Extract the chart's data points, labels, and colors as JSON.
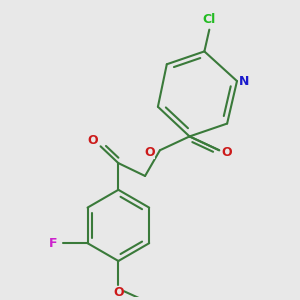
{
  "bg_color": "#e8e8e8",
  "bond_color": "#3a7a3a",
  "bond_width": 1.5,
  "cl_color": "#22bb22",
  "n_color": "#1a1acc",
  "o_color": "#cc1a1a",
  "f_color": "#cc22cc",
  "cl_label": "Cl",
  "n_label": "N",
  "o_label": "O",
  "f_label": "F"
}
